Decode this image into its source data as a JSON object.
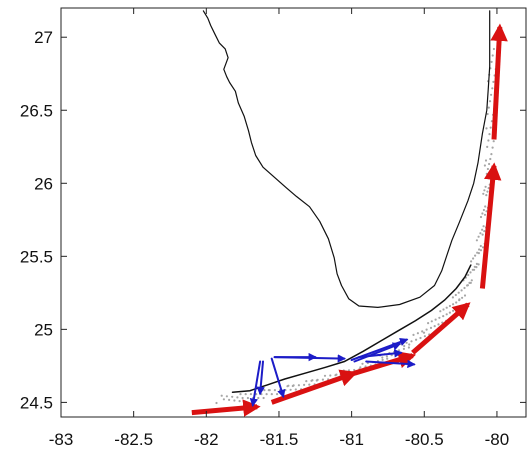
{
  "figure": {
    "x_axis": {
      "range": [
        -83,
        -79.8
      ],
      "ticks": [
        {
          "value": -83,
          "label": "-83"
        },
        {
          "value": -82.5,
          "label": "-82.5"
        },
        {
          "value": -82,
          "label": "-82"
        },
        {
          "value": -81.5,
          "label": "-81.5"
        },
        {
          "value": -81,
          "label": "-81"
        },
        {
          "value": -80.5,
          "label": "-80.5"
        },
        {
          "value": -80,
          "label": "-80"
        }
      ]
    },
    "y_axis": {
      "range": [
        24.4,
        27.2
      ],
      "ticks": [
        {
          "value": 24.5,
          "label": "24.5"
        },
        {
          "value": 25,
          "label": "25"
        },
        {
          "value": 25.5,
          "label": "25.5"
        },
        {
          "value": 26,
          "label": "26"
        },
        {
          "value": 26.5,
          "label": "26.5"
        },
        {
          "value": 27,
          "label": "27"
        }
      ]
    },
    "colors": {
      "coastline": "#111111",
      "reef_points": "#a6a6a6",
      "red_arrows": "#d91111",
      "blue_arrows": "#1c1cc7",
      "axes": "#222222"
    },
    "coastline": [
      [
        -82.02,
        27.18
      ],
      [
        -81.99,
        27.13
      ],
      [
        -81.97,
        27.08
      ],
      [
        -81.94,
        27.02
      ],
      [
        -81.91,
        26.96
      ],
      [
        -81.87,
        26.92
      ],
      [
        -81.85,
        26.86
      ],
      [
        -81.88,
        26.78
      ],
      [
        -81.86,
        26.73
      ],
      [
        -81.84,
        26.69
      ],
      [
        -81.8,
        26.63
      ],
      [
        -81.78,
        26.55
      ],
      [
        -81.74,
        26.46
      ],
      [
        -81.71,
        26.36
      ],
      [
        -81.69,
        26.28
      ],
      [
        -81.66,
        26.19
      ],
      [
        -81.61,
        26.11
      ],
      [
        -81.53,
        26.04
      ],
      [
        -81.45,
        25.97
      ],
      [
        -81.38,
        25.91
      ],
      [
        -81.29,
        25.84
      ],
      [
        -81.22,
        25.74
      ],
      [
        -81.16,
        25.62
      ],
      [
        -81.12,
        25.49
      ],
      [
        -81.1,
        25.38
      ],
      [
        -81.07,
        25.3
      ],
      [
        -81.02,
        25.21
      ],
      [
        -80.95,
        25.16
      ],
      [
        -80.82,
        25.15
      ],
      [
        -80.67,
        25.17
      ],
      [
        -80.53,
        25.22
      ],
      [
        -80.43,
        25.3
      ],
      [
        -80.38,
        25.4
      ],
      [
        -80.34,
        25.52
      ],
      [
        -80.31,
        25.61
      ],
      [
        -80.26,
        25.73
      ],
      [
        -80.2,
        25.88
      ],
      [
        -80.16,
        26.0
      ],
      [
        -80.13,
        26.14
      ],
      [
        -80.1,
        26.34
      ],
      [
        -80.07,
        26.5
      ],
      [
        -80.06,
        26.64
      ],
      [
        -80.05,
        26.8
      ],
      [
        -80.05,
        26.95
      ],
      [
        -80.05,
        27.1
      ],
      [
        -80.05,
        27.18
      ]
    ],
    "keys_chain": [
      [
        -81.82,
        24.57
      ],
      [
        -81.7,
        24.58
      ],
      [
        -81.58,
        24.62
      ],
      [
        -81.46,
        24.66
      ],
      [
        -81.32,
        24.7
      ],
      [
        -81.18,
        24.74
      ],
      [
        -81.05,
        24.78
      ],
      [
        -80.92,
        24.85
      ],
      [
        -80.8,
        24.92
      ],
      [
        -80.68,
        24.99
      ],
      [
        -80.56,
        25.06
      ],
      [
        -80.45,
        25.13
      ],
      [
        -80.36,
        25.2
      ],
      [
        -80.28,
        25.28
      ],
      [
        -80.22,
        25.36
      ],
      [
        -80.18,
        25.44
      ]
    ],
    "reef_track": [
      [
        -81.9,
        24.52
      ],
      [
        -81.75,
        24.53
      ],
      [
        -81.6,
        24.56
      ],
      [
        -81.45,
        24.59
      ],
      [
        -81.3,
        24.63
      ],
      [
        -81.15,
        24.67
      ],
      [
        -81.0,
        24.71
      ],
      [
        -80.85,
        24.77
      ],
      [
        -80.72,
        24.84
      ],
      [
        -80.58,
        24.92
      ],
      [
        -80.46,
        25.01
      ],
      [
        -80.36,
        25.1
      ],
      [
        -80.28,
        25.19
      ],
      [
        -80.21,
        25.3
      ],
      [
        -80.16,
        25.42
      ],
      [
        -80.12,
        25.55
      ],
      [
        -80.09,
        25.7
      ],
      [
        -80.07,
        25.85
      ],
      [
        -80.06,
        26.0
      ],
      [
        -80.05,
        26.2
      ],
      [
        -80.04,
        26.45
      ],
      [
        -80.03,
        26.7
      ],
      [
        -80.02,
        26.95
      ]
    ],
    "red_arrows": [
      {
        "from": [
          -82.1,
          24.43
        ],
        "to": [
          -81.65,
          24.47
        ]
      },
      {
        "from": [
          -81.55,
          24.5
        ],
        "to": [
          -80.98,
          24.7
        ]
      },
      {
        "from": [
          -80.98,
          24.7
        ],
        "to": [
          -80.58,
          24.82
        ]
      },
      {
        "from": [
          -80.58,
          24.84
        ],
        "to": [
          -80.2,
          25.17
        ]
      },
      {
        "from": [
          -80.1,
          25.28
        ],
        "to": [
          -80.02,
          26.12
        ]
      },
      {
        "from": [
          -80.02,
          26.3
        ],
        "to": [
          -79.98,
          27.07
        ]
      }
    ],
    "blue_arrows": [
      {
        "from": [
          -81.63,
          24.78
        ],
        "to": [
          -81.68,
          24.48
        ]
      },
      {
        "from": [
          -81.61,
          24.78
        ],
        "to": [
          -81.63,
          24.56
        ]
      },
      {
        "from": [
          -81.55,
          24.8
        ],
        "to": [
          -81.47,
          24.54
        ]
      },
      {
        "from": [
          -81.53,
          24.81
        ],
        "to": [
          -81.25,
          24.81
        ]
      },
      {
        "from": [
          -81.53,
          24.81
        ],
        "to": [
          -81.05,
          24.8
        ]
      },
      {
        "from": [
          -81.0,
          24.79
        ],
        "to": [
          -80.62,
          24.93
        ]
      },
      {
        "from": [
          -80.98,
          24.78
        ],
        "to": [
          -80.67,
          24.9
        ]
      },
      {
        "from": [
          -80.95,
          24.81
        ],
        "to": [
          -80.66,
          24.84
        ]
      },
      {
        "from": [
          -80.9,
          24.78
        ],
        "to": [
          -80.57,
          24.76
        ]
      }
    ]
  }
}
